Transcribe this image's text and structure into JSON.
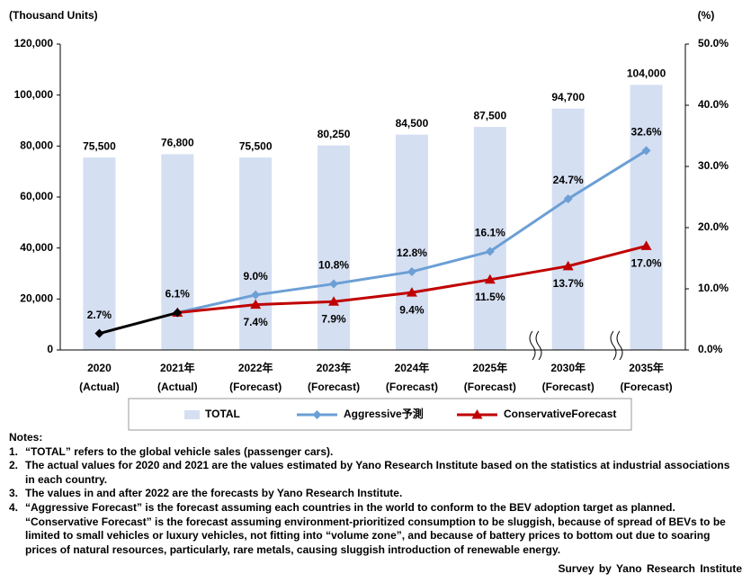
{
  "chart_data": {
    "type": "bar_line",
    "y_axis_title": "(Thousand Units)",
    "y2_axis_title": "(%)",
    "categories": [
      "2020",
      "2021年",
      "2022年",
      "2023年",
      "2024年",
      "2025年",
      "2030年",
      "2035年"
    ],
    "category_notes": [
      "(Actual)",
      "(Actual)",
      "(Forecast)",
      "(Forecast)",
      "(Forecast)",
      "(Forecast)",
      "(Forecast)",
      "(Forecast)"
    ],
    "ylim": [
      0,
      120000
    ],
    "yticks": [
      0,
      {
        "value": 20000,
        "label": "20,000"
      },
      {
        "value": 40000,
        "label": "40,000"
      },
      {
        "value": 60000,
        "label": "60,000"
      },
      {
        "value": 80000,
        "label": "80,000"
      },
      {
        "value": 100000,
        "label": "100,000"
      },
      {
        "value": 120000,
        "label": "120,000"
      }
    ],
    "y2lim": [
      0,
      50
    ],
    "y2ticks": [
      {
        "value": 0,
        "label": "0.0%"
      },
      {
        "value": 10,
        "label": "10.0%"
      },
      {
        "value": 20,
        "label": "20.0%"
      },
      {
        "value": 30,
        "label": "30.0%"
      },
      {
        "value": 40,
        "label": "40.0%"
      },
      {
        "value": 50,
        "label": "50.0%"
      }
    ],
    "series": [
      {
        "name": "TOTAL",
        "type": "bar",
        "color": "#d5dff2",
        "values": [
          75500,
          76800,
          75500,
          80250,
          84500,
          87500,
          94700,
          104000
        ],
        "value_labels": [
          "75,500",
          "76,800",
          "75,500",
          "80,250",
          "84,500",
          "87,500",
          "94,700",
          "104,000"
        ]
      },
      {
        "name": "Aggressive予測",
        "type": "line",
        "axis": "y2",
        "color": "#6b9fd5",
        "marker": "diamond",
        "values": [
          null,
          6.1,
          9.0,
          10.8,
          12.8,
          16.1,
          24.7,
          32.6
        ],
        "value_labels": [
          null,
          "6.1%",
          "9.0%",
          "10.8%",
          "12.8%",
          "16.1%",
          "24.7%",
          "32.6%"
        ]
      },
      {
        "name": "ConservativeForecast",
        "type": "line",
        "axis": "y2",
        "color": "#c00000",
        "marker": "triangle",
        "values": [
          null,
          6.1,
          7.4,
          7.9,
          9.4,
          11.5,
          13.7,
          17.0
        ],
        "value_labels": [
          null,
          null,
          "7.4%",
          "7.9%",
          "9.4%",
          "11.5%",
          "13.7%",
          "17.0%"
        ]
      },
      {
        "type": "line",
        "axis": "y2",
        "color": "#000000",
        "marker": "diamond",
        "values": [
          2.7,
          6.1,
          null,
          null,
          null,
          null,
          null,
          null
        ],
        "value_labels": [
          "2.7%",
          null,
          null,
          null,
          null,
          null,
          null,
          null
        ]
      }
    ]
  },
  "notes": {
    "heading": "Notes:",
    "items": [
      {
        "num": "1.",
        "text": "“TOTAL” refers to the global vehicle sales (passenger cars)."
      },
      {
        "num": "2.",
        "text": "The actual values for 2020 and 2021 are the values estimated by Yano Research Institute based on the statistics at industrial associations in each country."
      },
      {
        "num": "3.",
        "text": "The values in and after 2022 are the forecasts by Yano Research Institute."
      },
      {
        "num": "4.",
        "text": "“Aggressive Forecast” is the forecast assuming each countries in the world to conform to the BEV adoption target as planned. “Conservative Forecast” is the forecast assuming environment-prioritized consumption to be sluggish, because of spread of BEVs to be limited to small vehicles or luxury vehicles, not fitting into “volume zone”, and because of battery prices to bottom out due to soaring prices of natural resources, particularly, rare metals, causing sluggish introduction of renewable energy."
      }
    ]
  },
  "source": "Survey by Yano Research Institute"
}
